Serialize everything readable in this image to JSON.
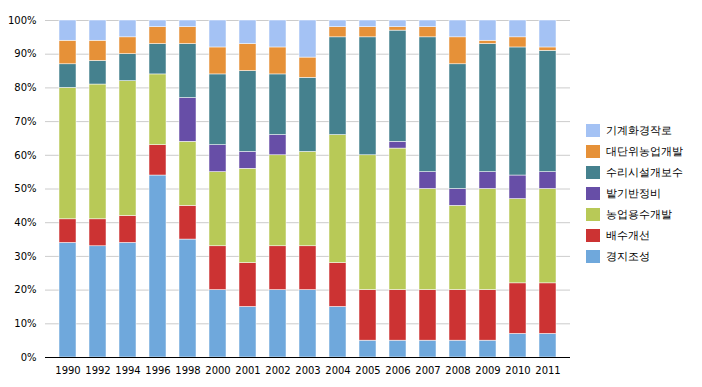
{
  "chart_data": {
    "type": "bar",
    "stacked": true,
    "categories": [
      "1990",
      "1992",
      "1994",
      "1996",
      "1998",
      "2000",
      "2001",
      "2002",
      "2003",
      "2004",
      "2005",
      "2006",
      "2007",
      "2008",
      "2009",
      "2010",
      "2011"
    ],
    "series": [
      {
        "name": "경지조성",
        "color": "#6fa8dc",
        "values": [
          34,
          33,
          34,
          54,
          35,
          20,
          15,
          20,
          20,
          15,
          5,
          5,
          5,
          5,
          5,
          7,
          7
        ]
      },
      {
        "name": "배수개선",
        "color": "#cc3333",
        "values": [
          7,
          8,
          8,
          9,
          10,
          13,
          13,
          13,
          13,
          13,
          15,
          15,
          15,
          15,
          15,
          15,
          15
        ]
      },
      {
        "name": "농업용수개발",
        "color": "#b8c957",
        "values": [
          39,
          40,
          40,
          21,
          19,
          22,
          28,
          27,
          28,
          38,
          40,
          42,
          30,
          25,
          30,
          25,
          28
        ]
      },
      {
        "name": "밭기반정비",
        "color": "#674ea7",
        "values": [
          0,
          0,
          0,
          0,
          13,
          8,
          5,
          6,
          0,
          0,
          0,
          2,
          5,
          5,
          5,
          7,
          5
        ]
      },
      {
        "name": "수리시설개보수",
        "color": "#45818e",
        "values": [
          7,
          7,
          8,
          9,
          16,
          21,
          24,
          18,
          22,
          29,
          35,
          33,
          40,
          37,
          38,
          38,
          36
        ]
      },
      {
        "name": "대단위농업개발",
        "color": "#e69138",
        "values": [
          7,
          6,
          5,
          5,
          5,
          8,
          8,
          8,
          6,
          3,
          3,
          1,
          3,
          8,
          1,
          3,
          1
        ]
      },
      {
        "name": "기계화경작로",
        "color": "#a4c2f4",
        "values": [
          6,
          6,
          5,
          2,
          2,
          8,
          7,
          8,
          11,
          2,
          2,
          2,
          2,
          5,
          6,
          5,
          8
        ]
      }
    ],
    "ylim": [
      0,
      100
    ],
    "yticks": [
      {
        "value": 0,
        "label": "0%"
      },
      {
        "value": 10,
        "label": "10%"
      },
      {
        "value": 20,
        "label": "20%"
      },
      {
        "value": 30,
        "label": "30%"
      },
      {
        "value": 40,
        "label": "40%"
      },
      {
        "value": 50,
        "label": "50%"
      },
      {
        "value": 60,
        "label": "60%"
      },
      {
        "value": 70,
        "label": "70%"
      },
      {
        "value": 80,
        "label": "80%"
      },
      {
        "value": 90,
        "label": "90%"
      },
      {
        "value": 100,
        "label": "100%"
      }
    ],
    "grid": true,
    "legend": "right"
  }
}
